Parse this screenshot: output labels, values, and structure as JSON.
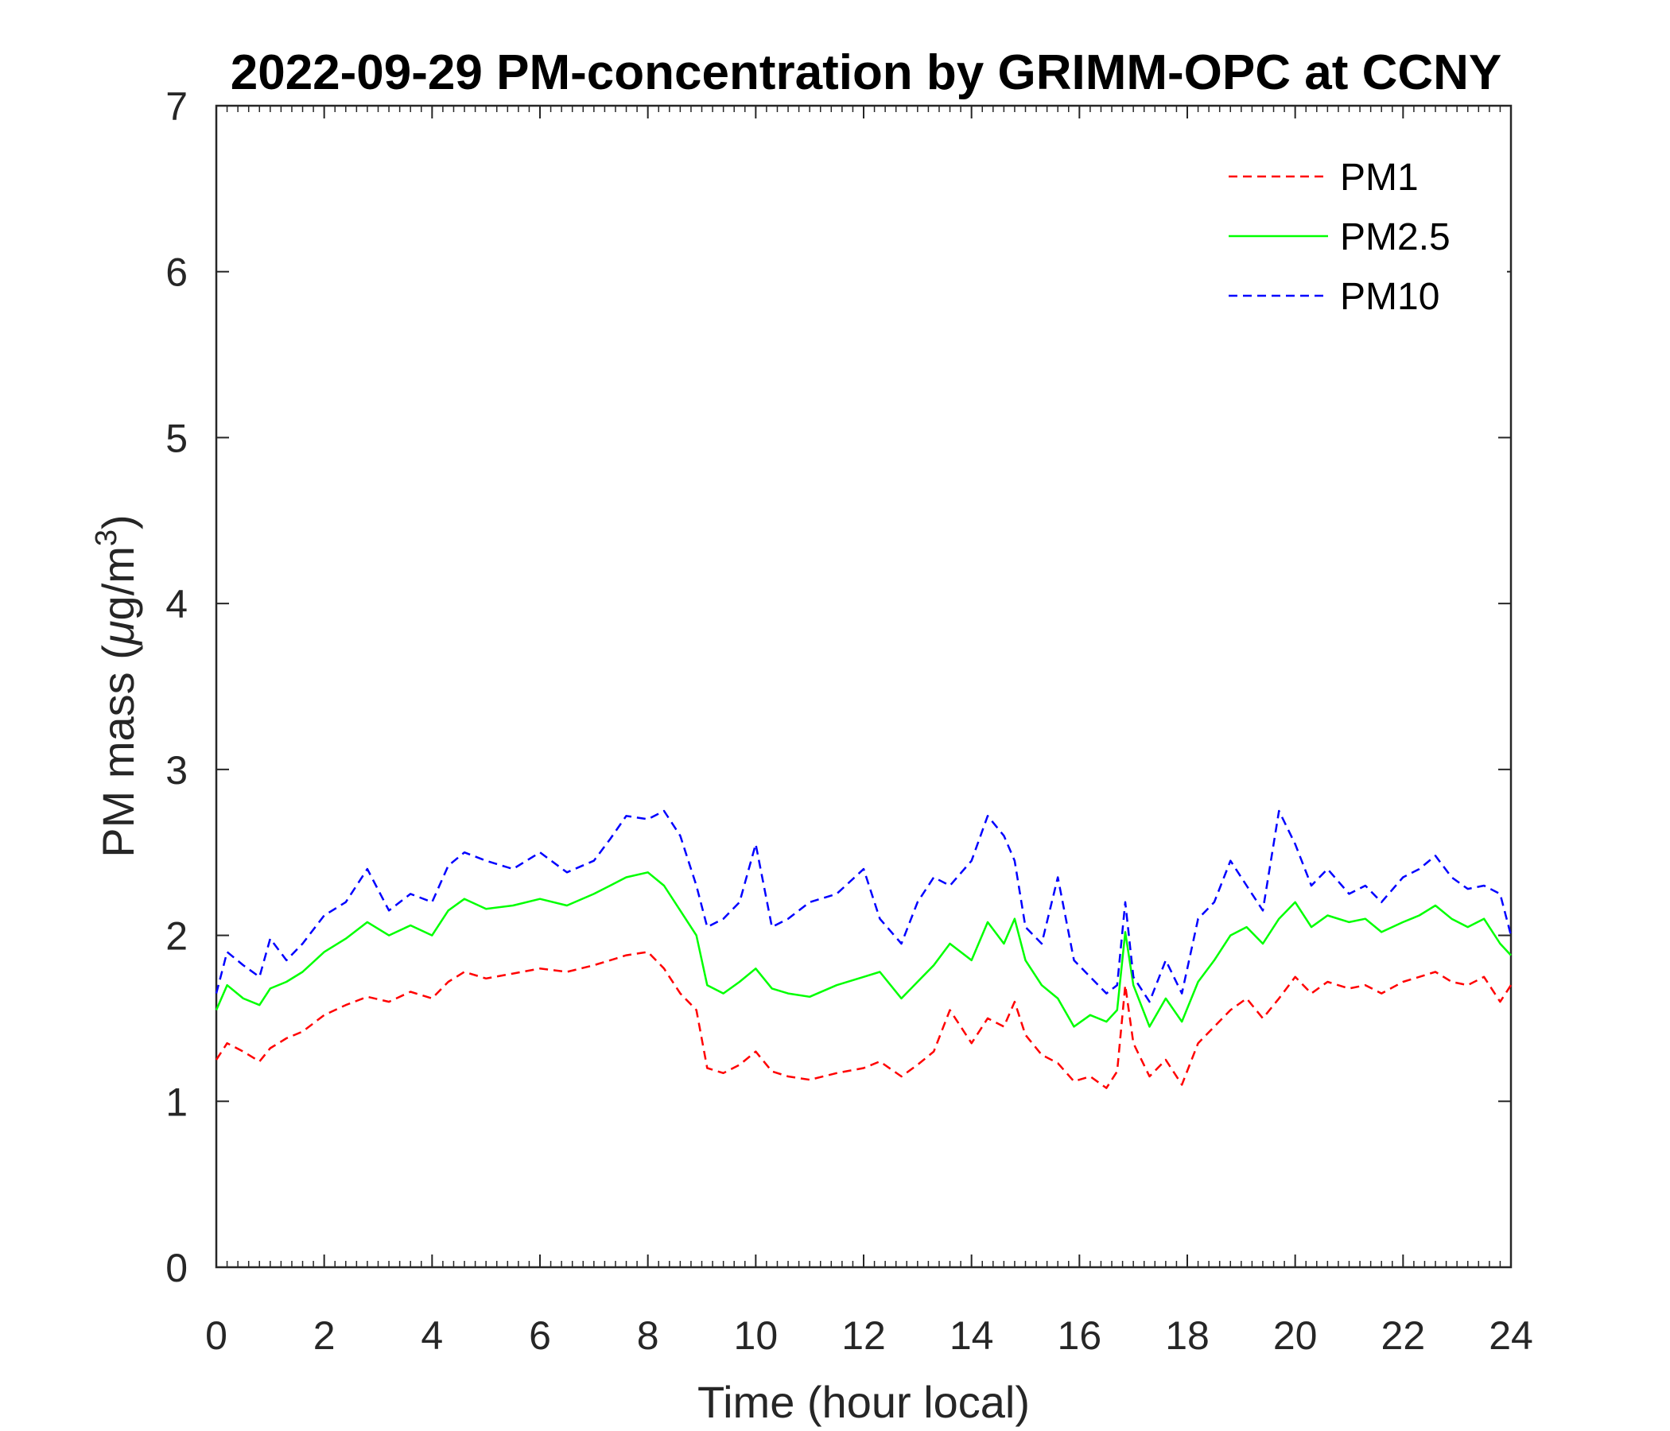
{
  "chart_data": {
    "type": "line",
    "title": "2022-09-29 PM-concentration by GRIMM-OPC at CCNY",
    "xlabel": "Time (hour local)",
    "ylabel_prefix": "PM mass (",
    "ylabel_mu": "μ",
    "ylabel_unit": "g/m",
    "ylabel_exp": "3",
    "ylabel_suffix": ")",
    "xlim": [
      0,
      24
    ],
    "ylim": [
      0,
      7
    ],
    "xticks": [
      0,
      2,
      4,
      6,
      8,
      10,
      12,
      14,
      16,
      18,
      20,
      22,
      24
    ],
    "yticks": [
      0,
      1,
      2,
      3,
      4,
      5,
      6,
      7
    ],
    "xtick_labels": [
      "0",
      "2",
      "4",
      "6",
      "8",
      "10",
      "12",
      "14",
      "16",
      "18",
      "20",
      "22",
      "24"
    ],
    "ytick_labels": [
      "0",
      "1",
      "2",
      "3",
      "4",
      "5",
      "6",
      "7"
    ],
    "legend_position": "top-right",
    "series": [
      {
        "name": "PM1",
        "color": "#ff0000",
        "dash": "dashed",
        "x": [
          0,
          0.2,
          0.5,
          0.8,
          1.0,
          1.3,
          1.6,
          2.0,
          2.4,
          2.8,
          3.2,
          3.6,
          4.0,
          4.3,
          4.6,
          5.0,
          5.5,
          6.0,
          6.5,
          7.0,
          7.3,
          7.6,
          8.0,
          8.3,
          8.6,
          8.9,
          9.1,
          9.4,
          9.7,
          10.0,
          10.3,
          10.6,
          11.0,
          11.5,
          12.0,
          12.3,
          12.7,
          13.0,
          13.3,
          13.6,
          14.0,
          14.3,
          14.6,
          14.8,
          15.0,
          15.3,
          15.6,
          15.9,
          16.2,
          16.5,
          16.7,
          16.85,
          17.0,
          17.3,
          17.6,
          17.9,
          18.2,
          18.5,
          18.8,
          19.1,
          19.4,
          19.7,
          20.0,
          20.3,
          20.6,
          21.0,
          21.3,
          21.6,
          22.0,
          22.3,
          22.6,
          22.9,
          23.2,
          23.5,
          23.8,
          24.0
        ],
        "values": [
          1.25,
          1.35,
          1.3,
          1.24,
          1.32,
          1.38,
          1.42,
          1.52,
          1.58,
          1.63,
          1.6,
          1.66,
          1.62,
          1.72,
          1.78,
          1.74,
          1.77,
          1.8,
          1.78,
          1.82,
          1.85,
          1.88,
          1.9,
          1.8,
          1.65,
          1.55,
          1.2,
          1.17,
          1.22,
          1.3,
          1.18,
          1.15,
          1.13,
          1.17,
          1.2,
          1.24,
          1.15,
          1.22,
          1.3,
          1.55,
          1.35,
          1.5,
          1.45,
          1.6,
          1.4,
          1.28,
          1.23,
          1.12,
          1.15,
          1.08,
          1.18,
          1.7,
          1.35,
          1.15,
          1.25,
          1.1,
          1.35,
          1.45,
          1.55,
          1.62,
          1.5,
          1.62,
          1.75,
          1.65,
          1.72,
          1.68,
          1.7,
          1.65,
          1.72,
          1.75,
          1.78,
          1.72,
          1.7,
          1.75,
          1.6,
          1.7
        ]
      },
      {
        "name": "PM2.5",
        "color": "#00ff00",
        "dash": "solid",
        "x": [
          0,
          0.2,
          0.5,
          0.8,
          1.0,
          1.3,
          1.6,
          2.0,
          2.4,
          2.8,
          3.2,
          3.6,
          4.0,
          4.3,
          4.6,
          5.0,
          5.5,
          6.0,
          6.5,
          7.0,
          7.3,
          7.6,
          8.0,
          8.3,
          8.6,
          8.9,
          9.1,
          9.4,
          9.7,
          10.0,
          10.3,
          10.6,
          11.0,
          11.5,
          12.0,
          12.3,
          12.7,
          13.0,
          13.3,
          13.6,
          14.0,
          14.3,
          14.6,
          14.8,
          15.0,
          15.3,
          15.6,
          15.9,
          16.2,
          16.5,
          16.7,
          16.85,
          17.0,
          17.3,
          17.6,
          17.9,
          18.2,
          18.5,
          18.8,
          19.1,
          19.4,
          19.7,
          20.0,
          20.3,
          20.6,
          21.0,
          21.3,
          21.6,
          22.0,
          22.3,
          22.6,
          22.9,
          23.2,
          23.5,
          23.8,
          24.0
        ],
        "values": [
          1.55,
          1.7,
          1.62,
          1.58,
          1.68,
          1.72,
          1.78,
          1.9,
          1.98,
          2.08,
          2.0,
          2.06,
          2.0,
          2.15,
          2.22,
          2.16,
          2.18,
          2.22,
          2.18,
          2.25,
          2.3,
          2.35,
          2.38,
          2.3,
          2.15,
          2.0,
          1.7,
          1.65,
          1.72,
          1.8,
          1.68,
          1.65,
          1.63,
          1.7,
          1.75,
          1.78,
          1.62,
          1.72,
          1.82,
          1.95,
          1.85,
          2.08,
          1.95,
          2.1,
          1.85,
          1.7,
          1.62,
          1.45,
          1.52,
          1.48,
          1.55,
          2.02,
          1.7,
          1.45,
          1.62,
          1.48,
          1.72,
          1.85,
          2.0,
          2.05,
          1.95,
          2.1,
          2.2,
          2.05,
          2.12,
          2.08,
          2.1,
          2.02,
          2.08,
          2.12,
          2.18,
          2.1,
          2.05,
          2.1,
          1.95,
          1.88
        ]
      },
      {
        "name": "PM10",
        "color": "#0000ff",
        "dash": "dashed",
        "x": [
          0,
          0.2,
          0.5,
          0.8,
          1.0,
          1.3,
          1.6,
          2.0,
          2.4,
          2.8,
          3.2,
          3.6,
          4.0,
          4.3,
          4.6,
          5.0,
          5.5,
          6.0,
          6.5,
          7.0,
          7.3,
          7.6,
          8.0,
          8.3,
          8.6,
          8.9,
          9.1,
          9.4,
          9.7,
          10.0,
          10.3,
          10.6,
          11.0,
          11.5,
          12.0,
          12.3,
          12.7,
          13.0,
          13.3,
          13.6,
          14.0,
          14.3,
          14.6,
          14.8,
          15.0,
          15.3,
          15.6,
          15.9,
          16.2,
          16.5,
          16.7,
          16.85,
          17.0,
          17.3,
          17.6,
          17.9,
          18.2,
          18.5,
          18.8,
          19.1,
          19.4,
          19.7,
          20.0,
          20.3,
          20.6,
          21.0,
          21.3,
          21.6,
          22.0,
          22.3,
          22.6,
          22.9,
          23.2,
          23.5,
          23.8,
          24.0
        ],
        "values": [
          1.65,
          1.9,
          1.82,
          1.75,
          1.98,
          1.85,
          1.95,
          2.12,
          2.2,
          2.4,
          2.15,
          2.25,
          2.2,
          2.42,
          2.5,
          2.45,
          2.4,
          2.5,
          2.38,
          2.45,
          2.58,
          2.72,
          2.7,
          2.75,
          2.6,
          2.3,
          2.05,
          2.1,
          2.2,
          2.55,
          2.05,
          2.1,
          2.2,
          2.25,
          2.4,
          2.1,
          1.95,
          2.2,
          2.35,
          2.3,
          2.45,
          2.72,
          2.6,
          2.45,
          2.05,
          1.95,
          2.35,
          1.85,
          1.75,
          1.65,
          1.7,
          2.2,
          1.75,
          1.6,
          1.85,
          1.65,
          2.1,
          2.2,
          2.45,
          2.3,
          2.15,
          2.75,
          2.55,
          2.3,
          2.4,
          2.25,
          2.3,
          2.2,
          2.35,
          2.4,
          2.48,
          2.35,
          2.28,
          2.3,
          2.25,
          2.0
        ]
      }
    ]
  }
}
